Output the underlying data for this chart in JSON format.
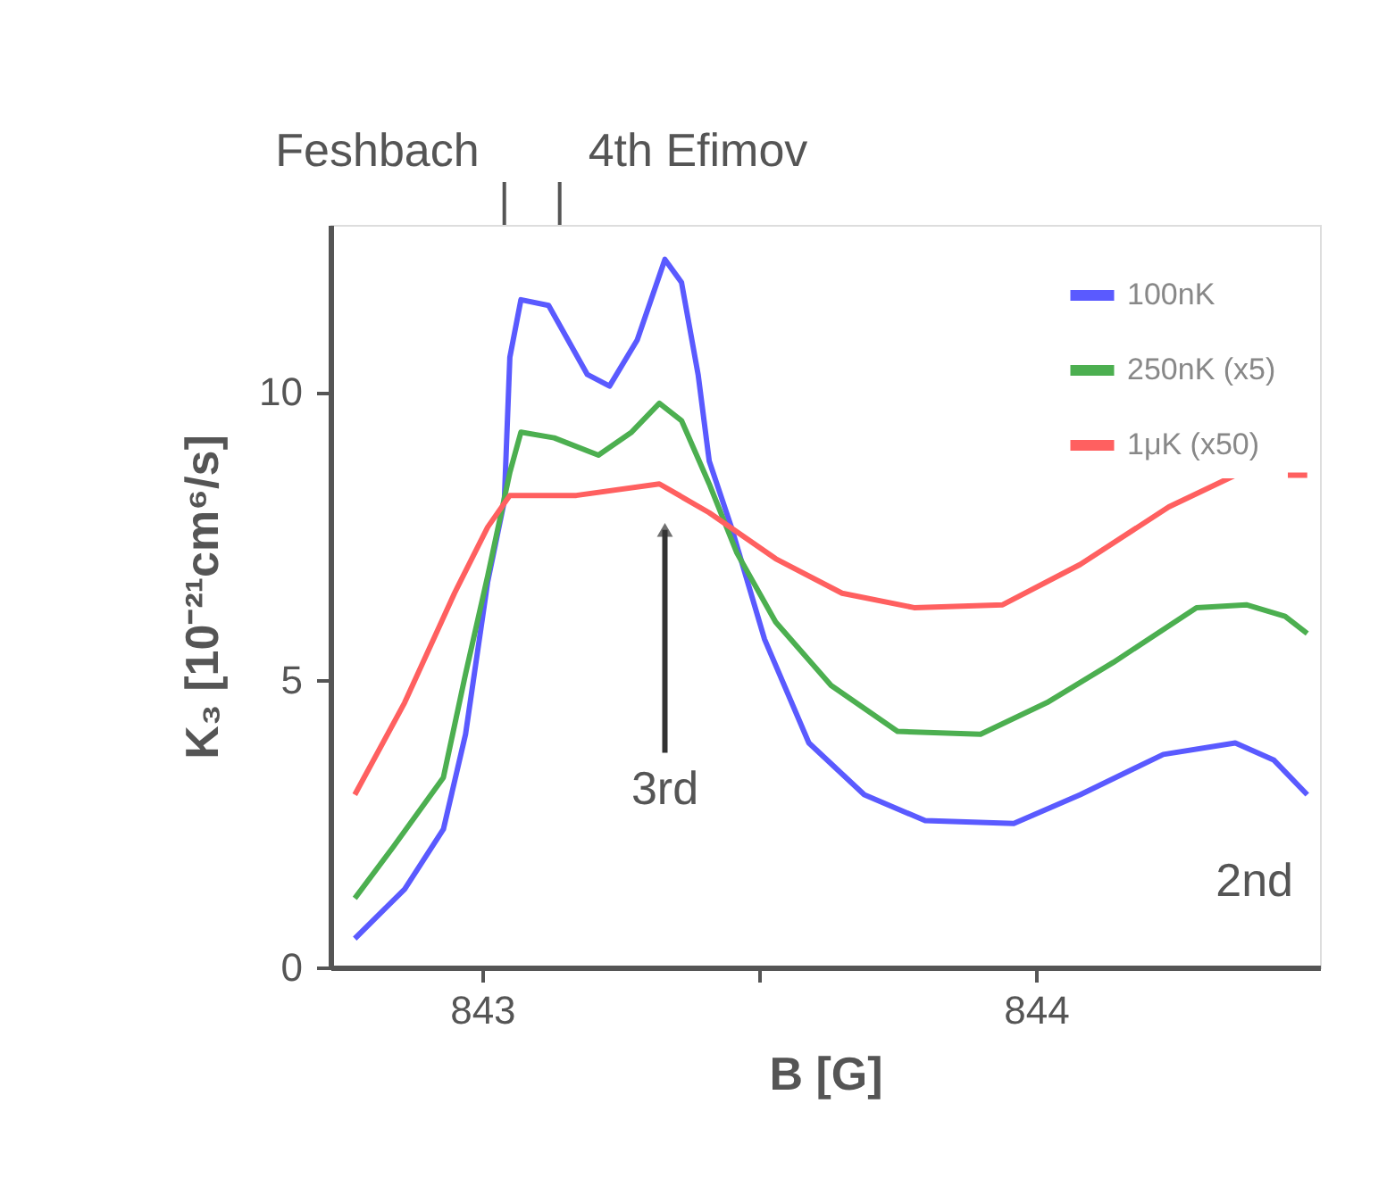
{
  "chart_data": {
    "type": "line",
    "xlabel": "B [G]",
    "ylabel": "K₃ [10⁻²¹cm⁶/s]",
    "xlim": [
      842.726,
      844.513
    ],
    "xticks": [
      843,
      {
        "value": 843.5,
        "label": null
      },
      844
    ],
    "ylim": [
      0,
      12.9
    ],
    "yticks": [
      0,
      5,
      10
    ],
    "grid": false,
    "legend": "top right",
    "line_style": "solid",
    "marker": "none",
    "series": [
      {
        "name": "100nK",
        "color": "#5a5aff",
        "x": [
          842.77,
          842.86,
          842.93,
          842.97,
          843.01,
          843.04,
          843.05,
          843.07,
          843.12,
          843.19,
          843.23,
          843.28,
          843.33,
          843.36,
          843.39,
          843.41,
          843.45,
          843.51,
          843.59,
          843.69,
          843.8,
          843.96,
          844.08,
          844.23,
          844.36,
          844.43,
          844.49
        ],
        "values": [
          0.5,
          1.36,
          2.4,
          4.05,
          6.7,
          8.1,
          10.6,
          11.6,
          11.5,
          10.3,
          10.1,
          10.9,
          12.3,
          11.9,
          10.3,
          8.8,
          7.65,
          5.7,
          3.9,
          3.0,
          2.55,
          2.5,
          3.0,
          3.7,
          3.9,
          3.6,
          3.0
        ]
      },
      {
        "name": "250nK (x5)",
        "color": "#4caf50",
        "x": [
          842.77,
          842.84,
          842.93,
          842.97,
          843.01,
          843.05,
          843.07,
          843.13,
          843.21,
          843.27,
          843.32,
          843.36,
          843.41,
          843.46,
          843.53,
          843.63,
          843.75,
          843.9,
          844.02,
          844.14,
          844.29,
          844.38,
          844.45,
          844.49
        ],
        "values": [
          1.2,
          2.1,
          3.3,
          5.1,
          6.8,
          8.6,
          9.3,
          9.2,
          8.9,
          9.3,
          9.8,
          9.5,
          8.4,
          7.2,
          6.0,
          4.9,
          4.1,
          4.05,
          4.6,
          5.3,
          6.25,
          6.3,
          6.1,
          5.8
        ]
      },
      {
        "name": "1μK (x50)",
        "color": "#ff6060",
        "x": [
          842.77,
          842.86,
          842.95,
          843.01,
          843.05,
          843.17,
          843.32,
          843.41,
          843.53,
          843.65,
          843.78,
          843.94,
          844.08,
          844.24,
          844.36,
          844.49
        ],
        "values": [
          3.0,
          4.6,
          6.5,
          7.65,
          8.2,
          8.2,
          8.4,
          7.9,
          7.1,
          6.5,
          6.25,
          6.3,
          7.0,
          8.0,
          8.55,
          8.55
        ]
      }
    ],
    "annotations": [
      {
        "text": "3rd",
        "x": 843.33,
        "y": 7.6
      },
      "2nd"
    ],
    "ref_lines": [
      {
        "axis": "x",
        "value": 843.04,
        "label": "Feshbach"
      },
      {
        "axis": "x",
        "value": 843.14,
        "label": "4th Efimov"
      }
    ]
  }
}
